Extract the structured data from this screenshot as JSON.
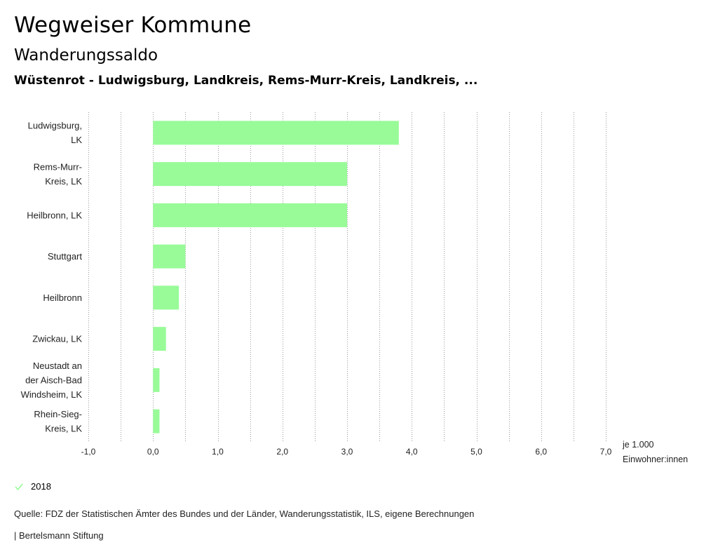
{
  "header": {
    "title": "Wegweiser Kommune",
    "subtitle": "Wanderungssaldo",
    "region": "Wüstenrot - Ludwigsburg, Landkreis, Rems-Murr-Kreis, Landkreis, ..."
  },
  "chart_data": {
    "type": "bar",
    "orientation": "horizontal",
    "title": "Wanderungssaldo",
    "categories": [
      [
        "Ludwigsburg,",
        "LK"
      ],
      [
        "Rems-Murr-",
        "Kreis, LK"
      ],
      [
        "Heilbronn, LK"
      ],
      [
        "Stuttgart"
      ],
      [
        "Heilbronn"
      ],
      [
        "Zwickau, LK"
      ],
      [
        "Neustadt an",
        "der Aisch-Bad",
        "Windsheim, LK"
      ],
      [
        "Rhein-Sieg-",
        "Kreis, LK"
      ]
    ],
    "series": [
      {
        "name": "2018",
        "values": [
          3.8,
          3.0,
          3.0,
          0.5,
          0.4,
          0.2,
          0.1,
          0.1
        ]
      }
    ],
    "xlim": [
      -1.0,
      7.0
    ],
    "xticks": [
      "-1,0",
      "0,0",
      "1,0",
      "2,0",
      "3,0",
      "4,0",
      "5,0",
      "6,0",
      "7,0"
    ],
    "xtick_values": [
      -1,
      0,
      1,
      2,
      3,
      4,
      5,
      6,
      7
    ],
    "xlabel": [
      "je 1.000",
      "Einwohner:innen"
    ],
    "grid": true,
    "legend": "bottom-left",
    "bar_color": "#98fb98"
  },
  "legend": {
    "label": "2018",
    "color": "#98fb98"
  },
  "footer": {
    "source": "Quelle: FDZ der Statistischen Ämter des Bundes und der Länder, Wanderungsstatistik, ILS, eigene Berechnungen",
    "publisher": "| Bertelsmann Stiftung"
  }
}
